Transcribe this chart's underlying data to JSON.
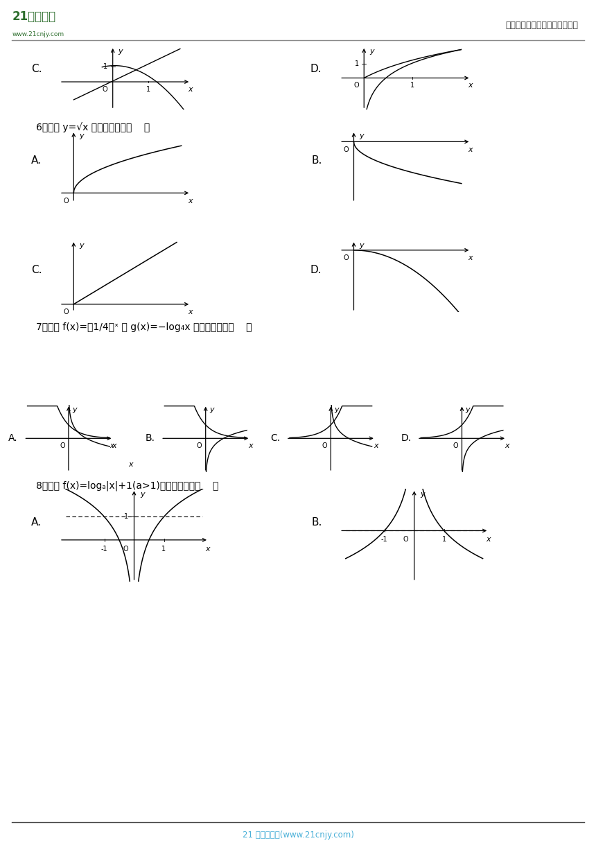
{
  "bg_color": "#ffffff",
  "header_right": "中小学教育资源及组卷应用平台",
  "footer_text": "21 世纪教育网(www.21cnjy.com)",
  "footer_color": "#4ab0d8",
  "q6_text": "6．函数 y=√x 的图像大致为（    ）",
  "q7_text": "7．函数 f(x)=（1/4）ˣ 与 g(x)=−log₄x 的大致图像是（    ）",
  "q8_text": "8．函数 f(x)=logₐ|x|+1(a>1)的图象大致为（    ）"
}
